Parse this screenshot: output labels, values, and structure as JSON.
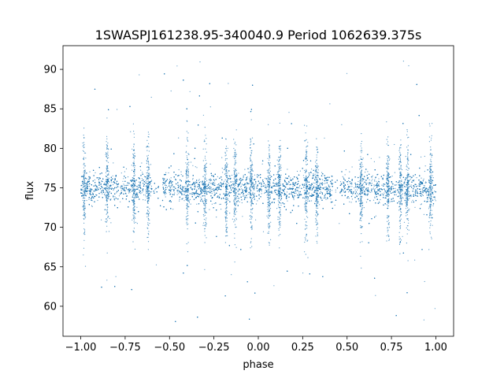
{
  "chart_data": {
    "type": "scatter",
    "title": "1SWASPJ161238.95-340040.9 Period 1062639.375s",
    "xlabel": "phase",
    "ylabel": "flux",
    "xlim": [
      -1.1,
      1.1
    ],
    "ylim": [
      56.2,
      93.0
    ],
    "x_ticks": [
      -1.0,
      -0.75,
      -0.5,
      -0.25,
      0.0,
      0.25,
      0.5,
      0.75,
      1.0
    ],
    "x_tick_labels": [
      "−1.00",
      "−0.75",
      "−0.50",
      "−0.25",
      "0.00",
      "0.25",
      "0.50",
      "0.75",
      "1.00"
    ],
    "y_ticks": [
      60,
      65,
      70,
      75,
      80,
      85,
      90
    ],
    "y_tick_labels": [
      "60",
      "65",
      "70",
      "75",
      "80",
      "85",
      "90"
    ],
    "grid": false,
    "legend": "none",
    "marker_color": "#1f77b4",
    "series": [
      {
        "phase_range": [
          -1.0,
          1.0
        ],
        "median_flux": 75.0,
        "core_band": [
          72.0,
          78.0
        ],
        "outlier_range": [
          58.0,
          91.5
        ],
        "gaps": [
          [
            -0.6,
            -0.54
          ],
          [
            0.42,
            0.46
          ]
        ],
        "outlier_columns": [
          -0.98,
          -0.85,
          -0.7,
          -0.62,
          -0.4,
          -0.3,
          -0.18,
          -0.13,
          -0.04,
          0.06,
          0.12,
          0.27,
          0.33,
          0.58,
          0.73,
          0.8,
          0.84,
          0.97
        ]
      }
    ]
  }
}
